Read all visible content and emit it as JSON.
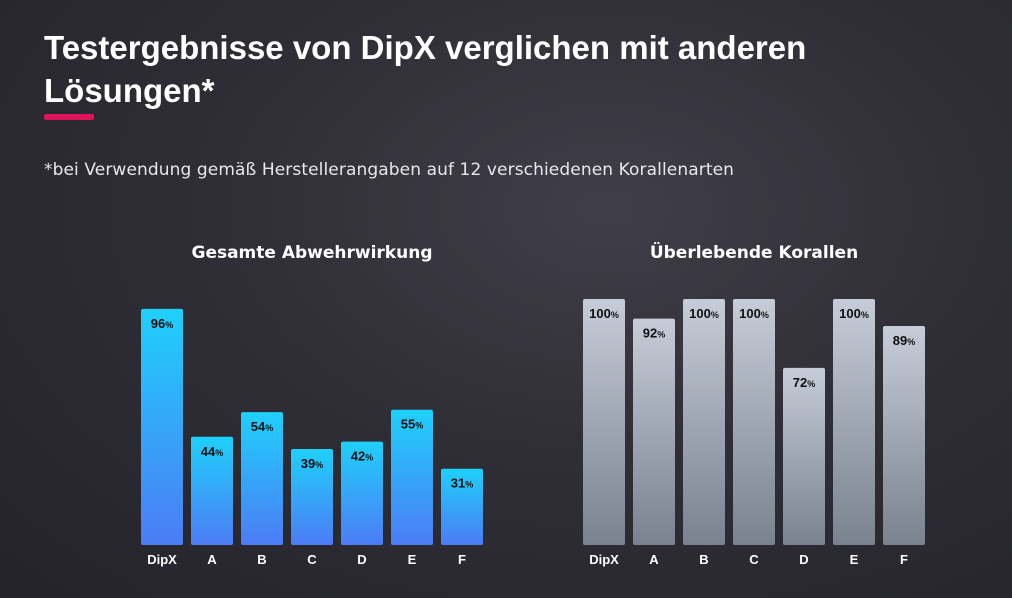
{
  "header": {
    "title": "Testergebnisse von DipX verglichen mit anderen Lösungen*",
    "subtitle": "*bei Verwendung gemäß Herstellerangaben auf 12 verschiedenen Korallenarten",
    "accent_color": "#e0145a"
  },
  "chart_data": [
    {
      "type": "bar",
      "title": "Gesamte Abwehrwirkung",
      "categories": [
        "DipX",
        "A",
        "B",
        "C",
        "D",
        "E",
        "F"
      ],
      "values": [
        96,
        44,
        54,
        39,
        42,
        55,
        31
      ],
      "value_suffix": "%",
      "ylim": [
        0,
        100
      ],
      "grid": false,
      "colors": {
        "top": "#1fd0fb",
        "bottom": "#4c7cf5"
      }
    },
    {
      "type": "bar",
      "title": "Überlebende Korallen",
      "categories": [
        "DipX",
        "A",
        "B",
        "C",
        "D",
        "E",
        "F"
      ],
      "values": [
        100,
        92,
        100,
        100,
        72,
        100,
        89
      ],
      "value_suffix": "%",
      "ylim": [
        0,
        100
      ],
      "grid": false,
      "colors": {
        "top": "#c6ccd8",
        "bottom": "#7a828f"
      }
    }
  ]
}
